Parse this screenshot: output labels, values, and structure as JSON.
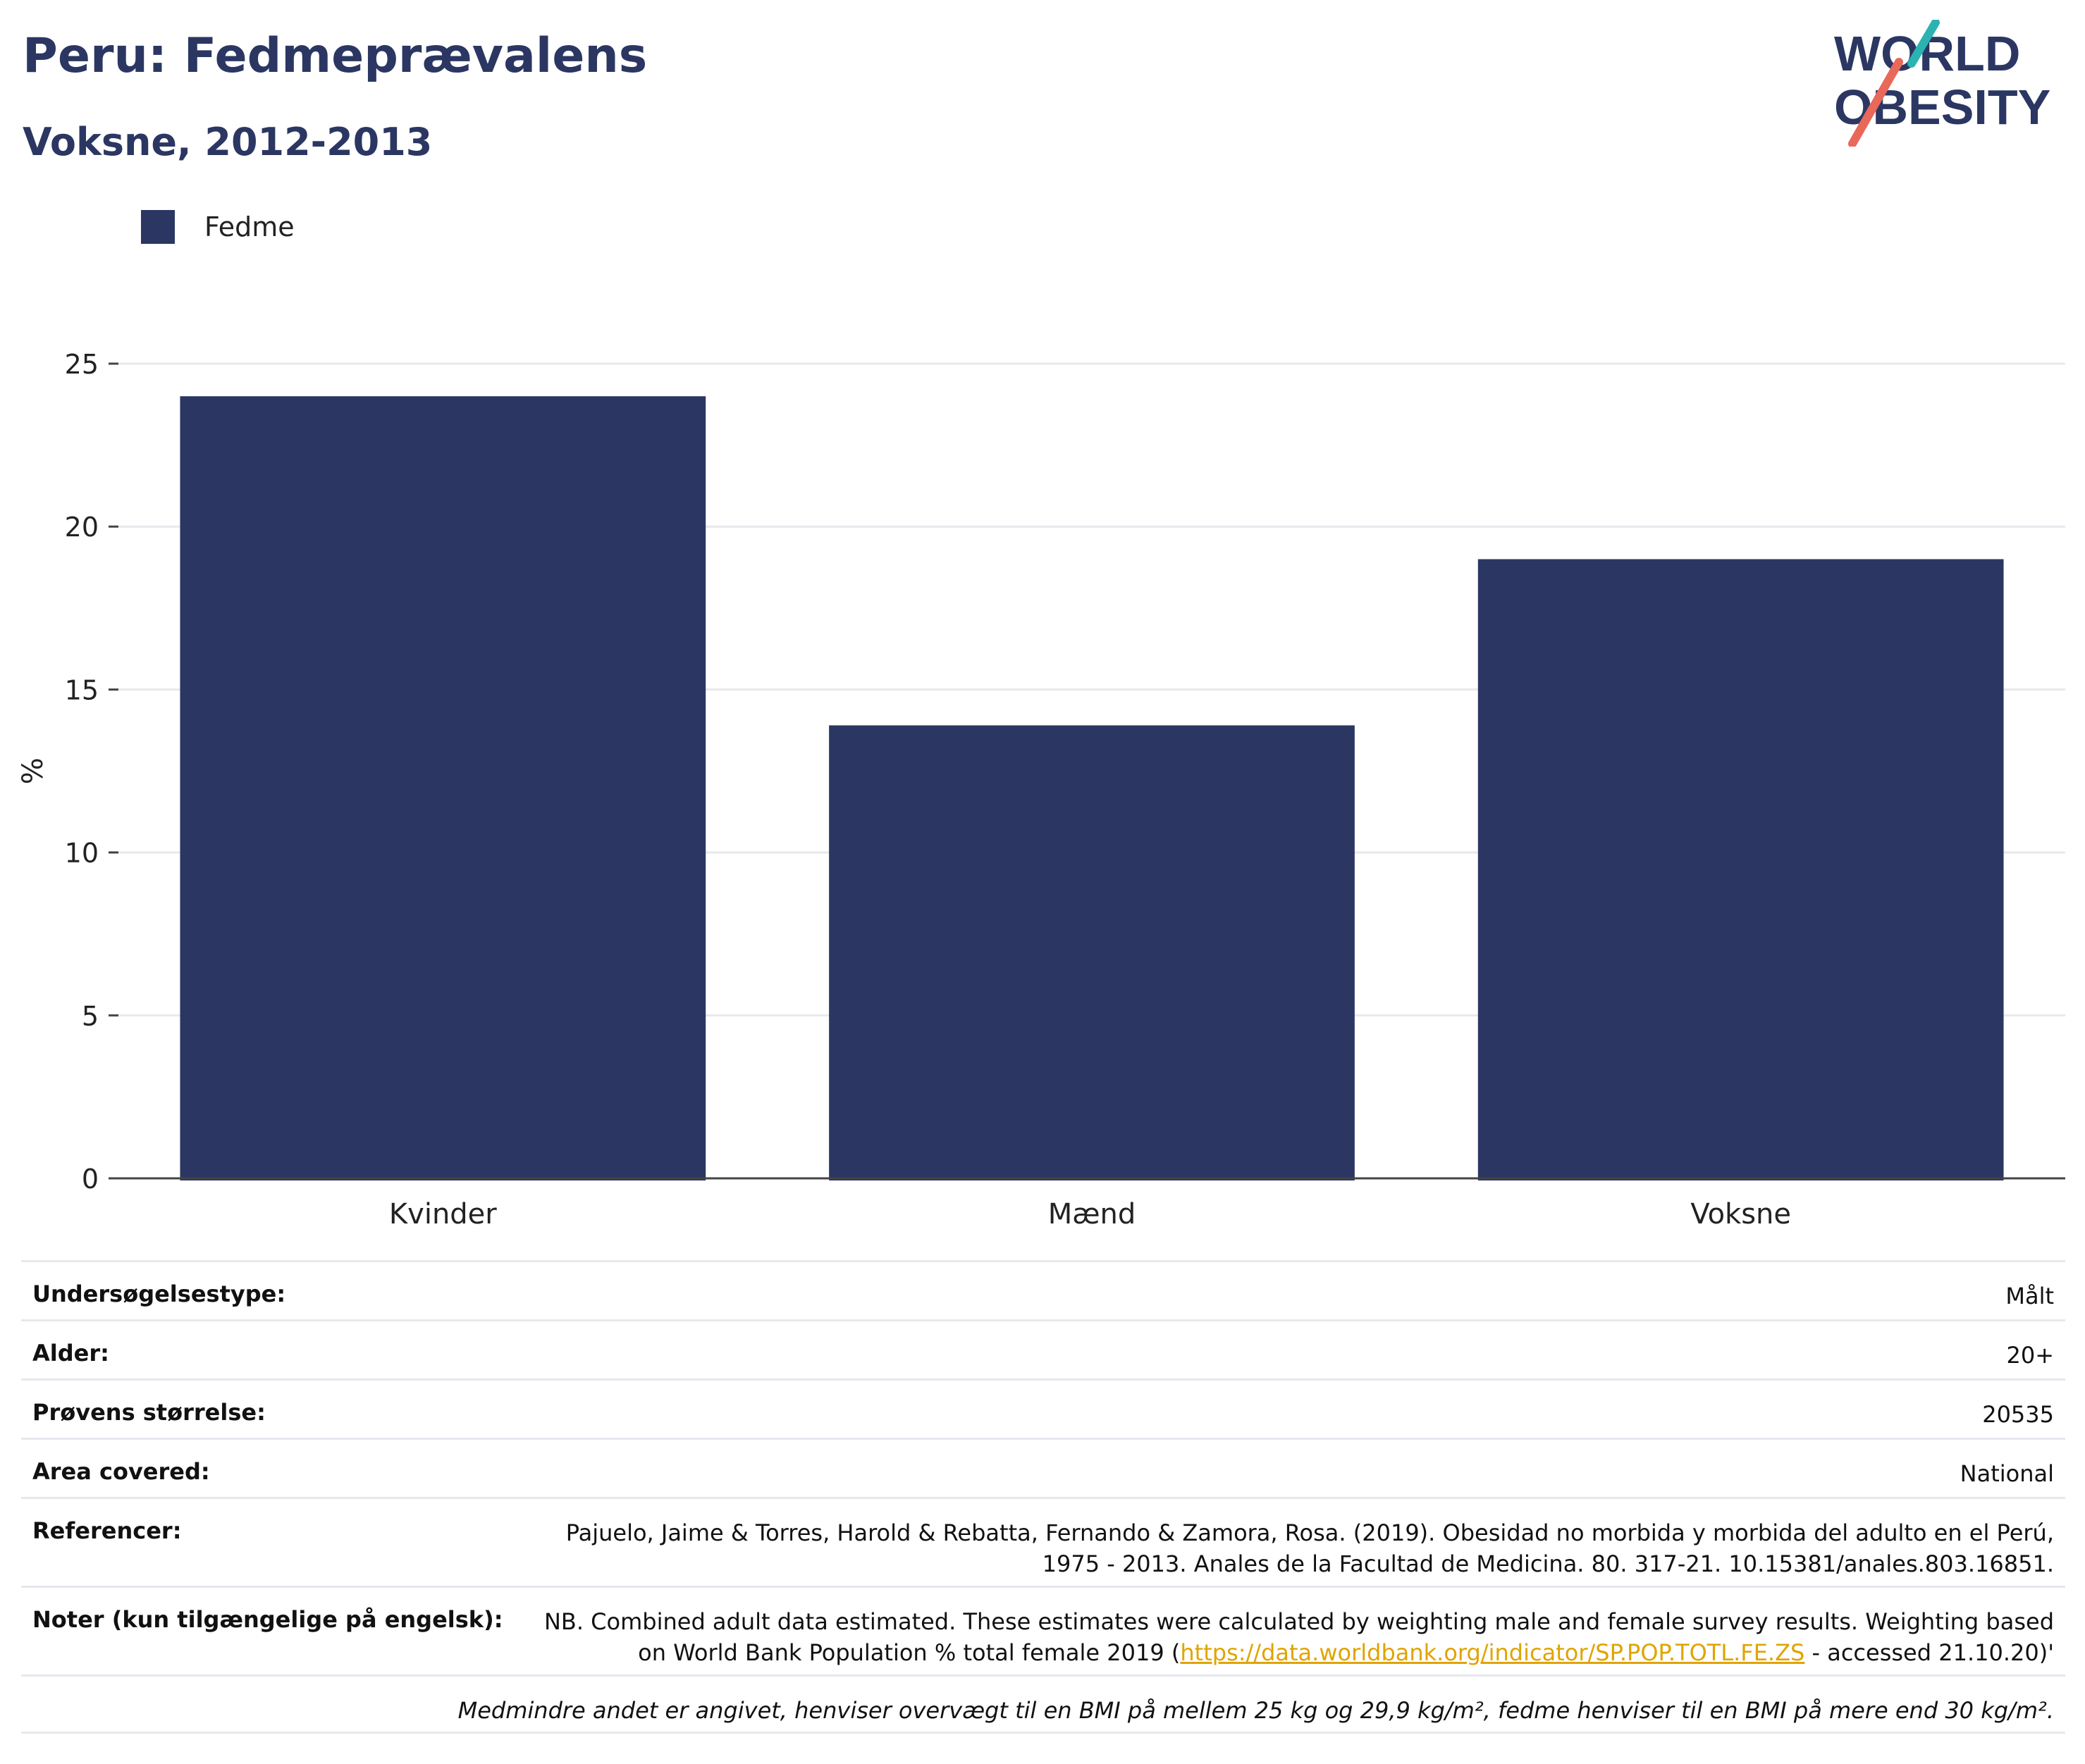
{
  "header": {
    "title": "Peru: Fedmeprævalens",
    "subtitle": "Voksne, 2012-2013",
    "logo_text_line1": "WORLD",
    "logo_text_line2": "OBESITY"
  },
  "colors": {
    "primary": "#2b3762",
    "logo_teal": "#2bb3b1",
    "logo_coral": "#e8685a",
    "link": "#e0a400"
  },
  "chart_data": {
    "type": "bar",
    "categories": [
      "Kvinder",
      "Mænd",
      "Voksne"
    ],
    "series": [
      {
        "name": "Fedme",
        "values": [
          24.0,
          13.9,
          19.0
        ]
      }
    ],
    "title": "",
    "xlabel": "",
    "ylabel": "%",
    "ylim": [
      0,
      25
    ],
    "yticks": [
      0,
      5,
      10,
      15,
      20,
      25
    ],
    "grid": true,
    "legend": "top-left"
  },
  "info": {
    "rows": [
      {
        "label": "Undersøgelsestype:",
        "value": "Målt"
      },
      {
        "label": "Alder:",
        "value": "20+"
      },
      {
        "label": "Prøvens størrelse:",
        "value": "20535"
      },
      {
        "label": "Area covered:",
        "value": "National"
      }
    ],
    "references_label": "Referencer:",
    "references_line1": "Pajuelo, Jaime & Torres, Harold & Rebatta, Fernando & Zamora, Rosa. (2019). Obesidad no morbida y morbida del adulto en el Perú,",
    "references_line2": "1975 - 2013. Anales de la Facultad de Medicina. 80. 317-21. 10.15381/anales.803.16851.",
    "notes_label": "Noter (kun tilgængelige på engelsk):",
    "notes_line1": "NB. Combined adult data estimated. These estimates were calculated by weighting male and female survey results. Weighting based",
    "notes_line2_pre": "on World Bank Population % total female 2019 (",
    "notes_link": "https://data.worldbank.org/indicator/SP.POP.TOTL.FE.ZS",
    "notes_line2_post": " - accessed 21.10.20)'",
    "footnote": "Medmindre andet er angivet, henviser overvægt til en BMI på mellem 25 kg og 29,9 kg/m², fedme henviser til en BMI på mere end 30 kg/m²."
  }
}
